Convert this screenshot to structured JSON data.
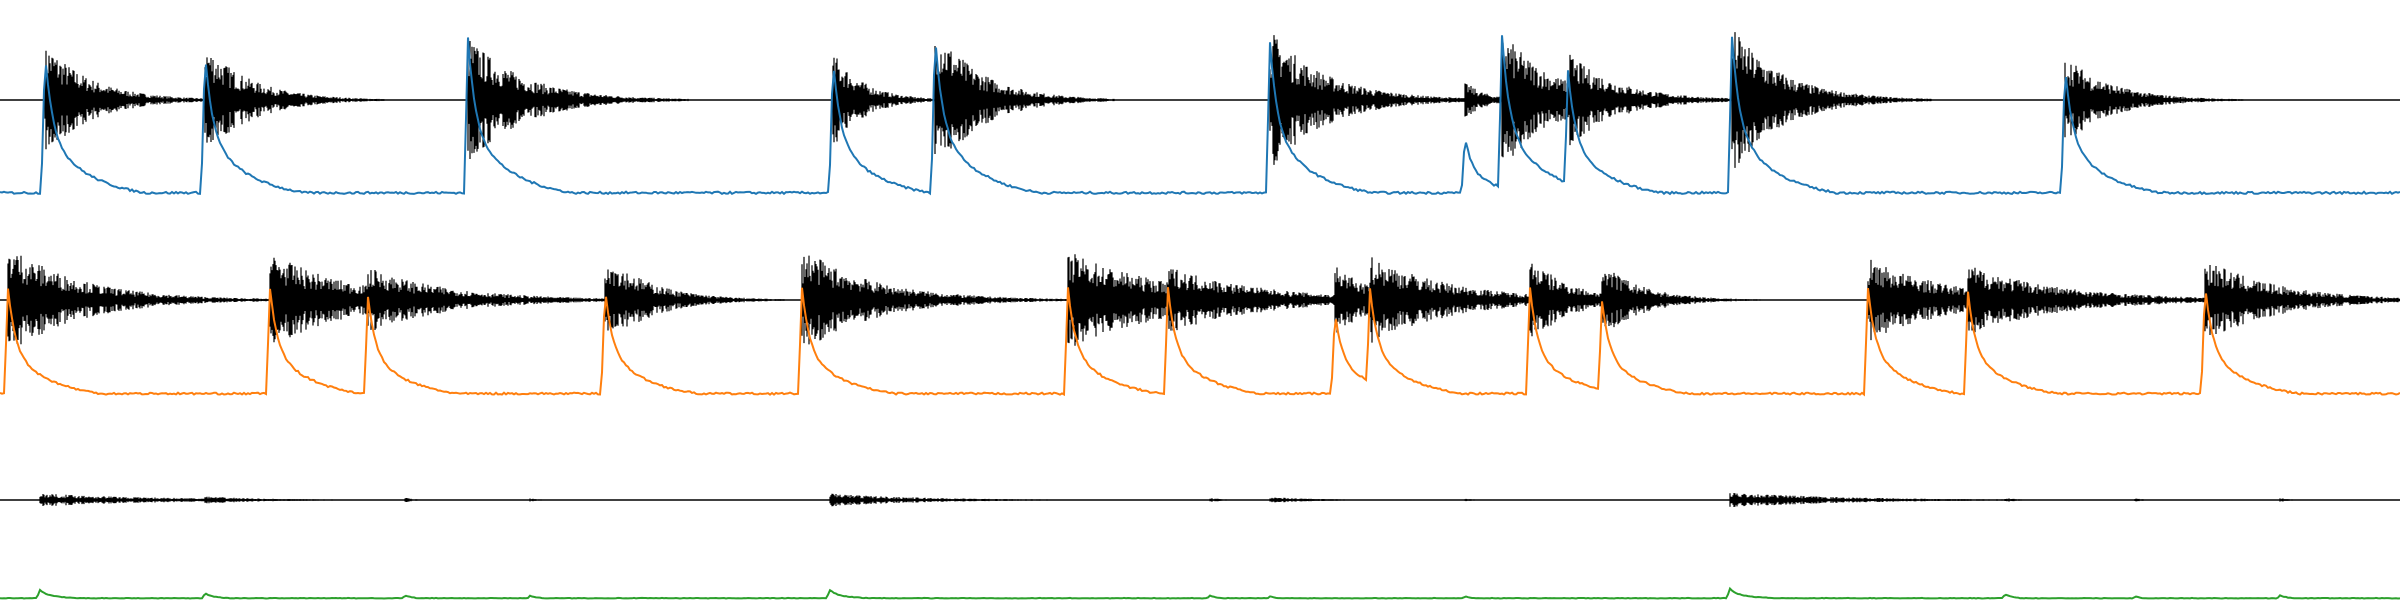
{
  "chart_data": [
    {
      "type": "line",
      "title": "",
      "xlabel": "",
      "ylabel": "",
      "axes_visible": false,
      "xlim": [
        0,
        24
      ],
      "series": [
        {
          "name": "waveform",
          "color": "#000000",
          "style": "dense-oscillation",
          "baseline": 0.5,
          "events": [
            {
              "t": 0.45,
              "amp": 0.62,
              "decay": 0.45
            },
            {
              "t": 2.05,
              "amp": 0.6,
              "decay": 0.45
            },
            {
              "t": 4.68,
              "amp": 0.68,
              "decay": 0.55
            },
            {
              "t": 8.33,
              "amp": 0.52,
              "decay": 0.3
            },
            {
              "t": 9.35,
              "amp": 0.8,
              "decay": 0.45
            },
            {
              "t": 12.7,
              "amp": 0.75,
              "decay": 0.55
            },
            {
              "t": 14.65,
              "amp": 0.2,
              "decay": 0.2
            },
            {
              "t": 15.02,
              "amp": 0.74,
              "decay": 0.5
            },
            {
              "t": 15.68,
              "amp": 0.5,
              "decay": 0.5
            },
            {
              "t": 17.32,
              "amp": 0.78,
              "decay": 0.5
            },
            {
              "t": 20.65,
              "amp": 0.48,
              "decay": 0.45
            }
          ]
        },
        {
          "name": "envelope",
          "color": "#1f77b4",
          "style": "envelope",
          "baseline": 0.04,
          "events": [
            {
              "t": 0.45,
              "amp": 0.82
            },
            {
              "t": 2.05,
              "amp": 0.82
            },
            {
              "t": 4.68,
              "amp": 0.9
            },
            {
              "t": 8.33,
              "amp": 0.78
            },
            {
              "t": 9.35,
              "amp": 0.92
            },
            {
              "t": 12.7,
              "amp": 0.88
            },
            {
              "t": 14.65,
              "amp": 0.35
            },
            {
              "t": 15.02,
              "amp": 0.92
            },
            {
              "t": 15.68,
              "amp": 0.72
            },
            {
              "t": 17.32,
              "amp": 0.91
            },
            {
              "t": 20.65,
              "amp": 0.75
            }
          ]
        }
      ]
    },
    {
      "type": "line",
      "title": "",
      "xlabel": "",
      "ylabel": "",
      "axes_visible": false,
      "xlim": [
        0,
        24
      ],
      "series": [
        {
          "name": "waveform",
          "color": "#000000",
          "style": "dense-oscillation",
          "baseline": 0.5,
          "events": [
            {
              "t": 0.08,
              "amp": 0.75,
              "decay": 0.7
            },
            {
              "t": 2.7,
              "amp": 0.64,
              "decay": 0.8
            },
            {
              "t": 3.68,
              "amp": 0.44,
              "decay": 0.8
            },
            {
              "t": 6.05,
              "amp": 0.64,
              "decay": 0.45
            },
            {
              "t": 8.02,
              "amp": 0.7,
              "decay": 0.7
            },
            {
              "t": 10.68,
              "amp": 0.66,
              "decay": 1.0
            },
            {
              "t": 11.68,
              "amp": 0.46,
              "decay": 0.9
            },
            {
              "t": 13.35,
              "amp": 0.5,
              "decay": 0.35
            },
            {
              "t": 13.7,
              "amp": 0.6,
              "decay": 0.8
            },
            {
              "t": 15.3,
              "amp": 0.58,
              "decay": 0.4
            },
            {
              "t": 16.02,
              "amp": 0.5,
              "decay": 0.4
            },
            {
              "t": 18.68,
              "amp": 0.56,
              "decay": 0.8
            },
            {
              "t": 19.68,
              "amp": 0.48,
              "decay": 0.9
            },
            {
              "t": 22.05,
              "amp": 0.56,
              "decay": 0.7
            }
          ]
        },
        {
          "name": "envelope",
          "color": "#ff7f0e",
          "style": "envelope",
          "baseline": 0.04,
          "events": [
            {
              "t": 0.08,
              "amp": 0.7
            },
            {
              "t": 2.7,
              "amp": 0.7
            },
            {
              "t": 3.68,
              "amp": 0.65
            },
            {
              "t": 6.05,
              "amp": 0.7
            },
            {
              "t": 8.02,
              "amp": 0.7
            },
            {
              "t": 10.68,
              "amp": 0.7
            },
            {
              "t": 11.68,
              "amp": 0.7
            },
            {
              "t": 13.35,
              "amp": 0.55
            },
            {
              "t": 13.7,
              "amp": 0.7
            },
            {
              "t": 15.3,
              "amp": 0.7
            },
            {
              "t": 16.02,
              "amp": 0.62
            },
            {
              "t": 18.68,
              "amp": 0.7
            },
            {
              "t": 19.68,
              "amp": 0.68
            },
            {
              "t": 22.05,
              "amp": 0.72
            }
          ]
        }
      ]
    },
    {
      "type": "line",
      "title": "",
      "xlabel": "",
      "ylabel": "",
      "axes_visible": false,
      "xlim": [
        0,
        24
      ],
      "series": [
        {
          "name": "waveform",
          "color": "#000000",
          "style": "dense-oscillation",
          "baseline": 0.5,
          "events": [
            {
              "t": 0.4,
              "amp": 0.22,
              "decay": 1.2
            },
            {
              "t": 2.05,
              "amp": 0.12,
              "decay": 0.6
            },
            {
              "t": 4.05,
              "amp": 0.08,
              "decay": 0.12
            },
            {
              "t": 5.3,
              "amp": 0.06,
              "decay": 0.1
            },
            {
              "t": 8.3,
              "amp": 0.22,
              "decay": 0.9
            },
            {
              "t": 12.1,
              "amp": 0.08,
              "decay": 0.12
            },
            {
              "t": 12.7,
              "amp": 0.1,
              "decay": 0.5
            },
            {
              "t": 14.65,
              "amp": 0.05,
              "decay": 0.1
            },
            {
              "t": 17.3,
              "amp": 0.26,
              "decay": 1.1
            },
            {
              "t": 20.05,
              "amp": 0.08,
              "decay": 0.12
            },
            {
              "t": 21.35,
              "amp": 0.06,
              "decay": 0.1
            },
            {
              "t": 22.8,
              "amp": 0.07,
              "decay": 0.1
            }
          ]
        },
        {
          "name": "envelope",
          "color": "#2ca02c",
          "style": "envelope",
          "baseline": 0.04,
          "events": [
            {
              "t": 0.4,
              "amp": 0.22
            },
            {
              "t": 2.05,
              "amp": 0.15
            },
            {
              "t": 4.05,
              "amp": 0.1
            },
            {
              "t": 5.3,
              "amp": 0.1
            },
            {
              "t": 8.3,
              "amp": 0.22
            },
            {
              "t": 12.1,
              "amp": 0.1
            },
            {
              "t": 12.7,
              "amp": 0.08
            },
            {
              "t": 14.65,
              "amp": 0.08
            },
            {
              "t": 17.3,
              "amp": 0.25
            },
            {
              "t": 20.05,
              "amp": 0.12
            },
            {
              "t": 21.35,
              "amp": 0.08
            },
            {
              "t": 22.8,
              "amp": 0.1
            }
          ]
        }
      ]
    }
  ]
}
